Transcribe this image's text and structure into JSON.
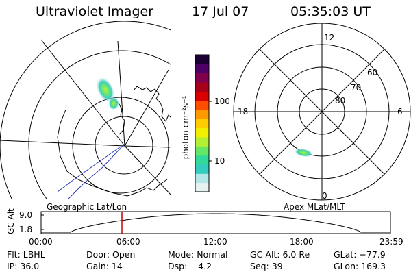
{
  "header": {
    "instrument": "Ultraviolet Imager",
    "date": "17 Jul 07",
    "time": "05:35:03 UT"
  },
  "colorbar": {
    "unit_label": "photon cm⁻²s⁻¹",
    "ticks": [
      "100",
      "10"
    ],
    "scale": "log",
    "colors": [
      "#e6f2f2",
      "#b3e6e6",
      "#33ccbf",
      "#33d999",
      "#66e666",
      "#b3f033",
      "#f0f000",
      "#ffcc00",
      "#ff9900",
      "#ff4d00",
      "#d90000",
      "#a6001a",
      "#80004d",
      "#4d0066",
      "#1a0033"
    ]
  },
  "geo_panel": {
    "label": "Geographic Lat/Lon"
  },
  "apex_panel": {
    "label": "Apex MLat/MLT",
    "mlt_labels": {
      "top": "12",
      "bottom": "0",
      "left": "18",
      "right": "6"
    },
    "lat_labels": [
      "60",
      "70",
      "80"
    ]
  },
  "timeline": {
    "axis_title": "GC Alt",
    "y_ticks": [
      "9.0",
      "1.8"
    ],
    "x_ticks": [
      "00:00",
      "06:00",
      "12:00",
      "18:00",
      "23:59"
    ],
    "current_time_marker": "05:35"
  },
  "status": {
    "flt": "Flt: LBHL",
    "ip": "IP: 36.0",
    "door": "Door: Open",
    "gain": "Gain: 14",
    "mode": "Mode: Normal",
    "dsp": "Dsp:    4.2",
    "gc_alt": "GC Alt: 6.0 Re",
    "seq": "Seq: 39",
    "glat": "GLat: −77.9",
    "glon": "GLon: 169.3"
  }
}
